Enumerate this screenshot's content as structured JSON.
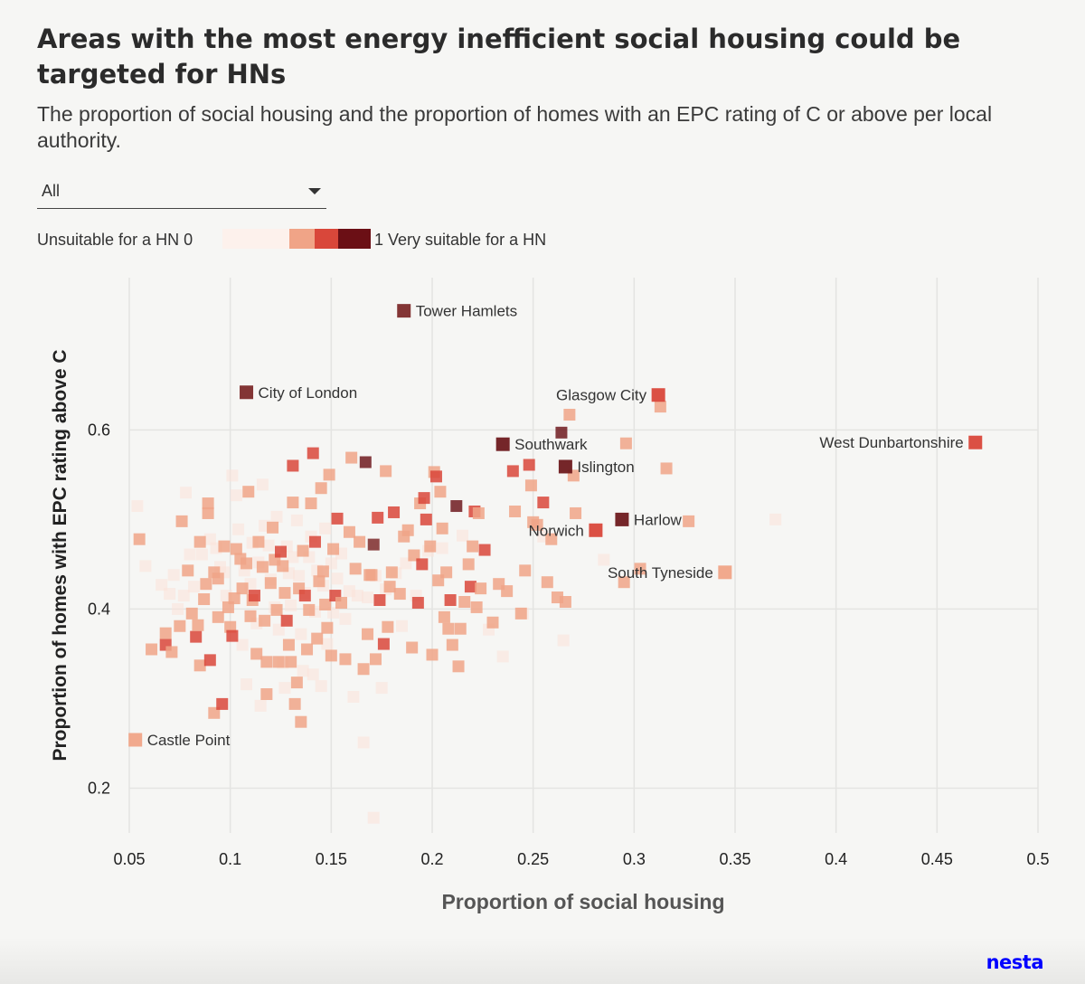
{
  "header": {
    "title": "Areas with the most energy inefficient social housing could be targeted for HNs",
    "subtitle": "The proportion of social housing and the proportion of homes with an EPC rating of C or above per local authority."
  },
  "filter": {
    "selected": "All"
  },
  "legend": {
    "left_label": "Unsuitable for a HN 0",
    "right_label": "1 Very suitable for a HN",
    "colors": [
      "#fdf1ec",
      "#f0a487",
      "#d9473a",
      "#6b0f15"
    ]
  },
  "brand": {
    "name": "nesta"
  },
  "chart_data": {
    "type": "scatter",
    "title": "Areas with the most energy inefficient social housing could be targeted for HNs",
    "xlabel": "Proportion of social housing",
    "ylabel": "Proportion of homes with EPC rating above C",
    "xlim": [
      0.05,
      0.5
    ],
    "ylim": [
      0.15,
      0.77
    ],
    "xticks": [
      {
        "value": 0.05,
        "label": "0.05"
      },
      {
        "value": 0.1,
        "label": "0.1"
      },
      {
        "value": 0.15,
        "label": "0.15"
      },
      {
        "value": 0.2,
        "label": "0.2"
      },
      {
        "value": 0.25,
        "label": "0.25"
      },
      {
        "value": 0.3,
        "label": "0.3"
      },
      {
        "value": 0.35,
        "label": "0.35"
      },
      {
        "value": 0.4,
        "label": "0.4"
      },
      {
        "value": 0.45,
        "label": "0.45"
      },
      {
        "value": 0.5,
        "label": "0.5"
      }
    ],
    "yticks": [
      {
        "value": 0.2,
        "label": "0.2"
      },
      {
        "value": 0.4,
        "label": "0.4"
      },
      {
        "value": 0.6,
        "label": "0.6"
      }
    ],
    "grid": true,
    "color_scale": "suitability 0 (light) to 1 (dark red)",
    "labeled_points": [
      {
        "name": "Tower Hamlets",
        "x": 0.186,
        "y": 0.733,
        "s": 0.78,
        "label_side": "right"
      },
      {
        "name": "City of London",
        "x": 0.108,
        "y": 0.642,
        "s": 0.78,
        "label_side": "right"
      },
      {
        "name": "Glasgow City",
        "x": 0.312,
        "y": 0.639,
        "s": 0.55,
        "label_side": "left"
      },
      {
        "name": "Southwark",
        "x": 0.235,
        "y": 0.584,
        "s": 0.85,
        "label_side": "right"
      },
      {
        "name": "West Dunbartonshire",
        "x": 0.469,
        "y": 0.586,
        "s": 0.55,
        "label_side": "left"
      },
      {
        "name": "Islington",
        "x": 0.266,
        "y": 0.559,
        "s": 0.85,
        "label_side": "right"
      },
      {
        "name": "Harlow",
        "x": 0.294,
        "y": 0.5,
        "s": 0.85,
        "label_side": "right"
      },
      {
        "name": "Norwich",
        "x": 0.281,
        "y": 0.488,
        "s": 0.55,
        "label_side": "left"
      },
      {
        "name": "South Tyneside",
        "x": 0.345,
        "y": 0.441,
        "s": 0.3,
        "label_side": "left"
      },
      {
        "name": "Castle Point",
        "x": 0.053,
        "y": 0.254,
        "s": 0.3,
        "label_side": "right"
      }
    ],
    "points": [
      [
        0.055,
        0.478,
        0.3
      ],
      [
        0.061,
        0.355,
        0.3
      ],
      [
        0.068,
        0.373,
        0.3
      ],
      [
        0.068,
        0.36,
        0.55
      ],
      [
        0.071,
        0.352,
        0.3
      ],
      [
        0.075,
        0.381,
        0.3
      ],
      [
        0.076,
        0.498,
        0.3
      ],
      [
        0.079,
        0.443,
        0.3
      ],
      [
        0.081,
        0.395,
        0.3
      ],
      [
        0.083,
        0.369,
        0.55
      ],
      [
        0.084,
        0.382,
        0.3
      ],
      [
        0.085,
        0.337,
        0.3
      ],
      [
        0.085,
        0.475,
        0.3
      ],
      [
        0.087,
        0.411,
        0.3
      ],
      [
        0.088,
        0.428,
        0.3
      ],
      [
        0.089,
        0.518,
        0.3
      ],
      [
        0.089,
        0.507,
        0.3
      ],
      [
        0.09,
        0.343,
        0.55
      ],
      [
        0.092,
        0.441,
        0.3
      ],
      [
        0.092,
        0.284,
        0.3
      ],
      [
        0.094,
        0.434,
        0.3
      ],
      [
        0.094,
        0.391,
        0.3
      ],
      [
        0.096,
        0.294,
        0.55
      ],
      [
        0.097,
        0.47,
        0.3
      ],
      [
        0.099,
        0.402,
        0.3
      ],
      [
        0.1,
        0.38,
        0.3
      ],
      [
        0.101,
        0.37,
        0.55
      ],
      [
        0.102,
        0.412,
        0.3
      ],
      [
        0.103,
        0.467,
        0.3
      ],
      [
        0.105,
        0.456,
        0.3
      ],
      [
        0.106,
        0.423,
        0.3
      ],
      [
        0.108,
        0.451,
        0.3
      ],
      [
        0.109,
        0.531,
        0.3
      ],
      [
        0.11,
        0.392,
        0.3
      ],
      [
        0.111,
        0.41,
        0.3
      ],
      [
        0.112,
        0.415,
        0.55
      ],
      [
        0.113,
        0.35,
        0.3
      ],
      [
        0.114,
        0.475,
        0.3
      ],
      [
        0.116,
        0.447,
        0.3
      ],
      [
        0.117,
        0.387,
        0.3
      ],
      [
        0.118,
        0.341,
        0.3
      ],
      [
        0.118,
        0.305,
        0.3
      ],
      [
        0.12,
        0.429,
        0.3
      ],
      [
        0.121,
        0.491,
        0.3
      ],
      [
        0.122,
        0.455,
        0.3
      ],
      [
        0.123,
        0.399,
        0.3
      ],
      [
        0.124,
        0.341,
        0.3
      ],
      [
        0.125,
        0.464,
        0.55
      ],
      [
        0.126,
        0.448,
        0.3
      ],
      [
        0.127,
        0.418,
        0.3
      ],
      [
        0.128,
        0.387,
        0.55
      ],
      [
        0.129,
        0.36,
        0.3
      ],
      [
        0.13,
        0.341,
        0.3
      ],
      [
        0.131,
        0.519,
        0.3
      ],
      [
        0.131,
        0.56,
        0.55
      ],
      [
        0.132,
        0.294,
        0.3
      ],
      [
        0.133,
        0.318,
        0.3
      ],
      [
        0.134,
        0.423,
        0.3
      ],
      [
        0.135,
        0.274,
        0.3
      ],
      [
        0.136,
        0.465,
        0.3
      ],
      [
        0.137,
        0.415,
        0.55
      ],
      [
        0.138,
        0.355,
        0.3
      ],
      [
        0.139,
        0.399,
        0.3
      ],
      [
        0.14,
        0.518,
        0.3
      ],
      [
        0.141,
        0.574,
        0.55
      ],
      [
        0.142,
        0.475,
        0.55
      ],
      [
        0.143,
        0.367,
        0.3
      ],
      [
        0.144,
        0.431,
        0.3
      ],
      [
        0.145,
        0.535,
        0.3
      ],
      [
        0.146,
        0.442,
        0.3
      ],
      [
        0.147,
        0.405,
        0.3
      ],
      [
        0.148,
        0.379,
        0.3
      ],
      [
        0.149,
        0.55,
        0.3
      ],
      [
        0.15,
        0.348,
        0.3
      ],
      [
        0.151,
        0.467,
        0.3
      ],
      [
        0.152,
        0.415,
        0.55
      ],
      [
        0.153,
        0.501,
        0.55
      ],
      [
        0.155,
        0.407,
        0.3
      ],
      [
        0.157,
        0.344,
        0.3
      ],
      [
        0.159,
        0.486,
        0.3
      ],
      [
        0.16,
        0.569,
        0.3
      ],
      [
        0.162,
        0.445,
        0.3
      ],
      [
        0.164,
        0.475,
        0.3
      ],
      [
        0.166,
        0.333,
        0.3
      ],
      [
        0.167,
        0.564,
        0.85
      ],
      [
        0.168,
        0.372,
        0.3
      ],
      [
        0.169,
        0.438,
        0.3
      ],
      [
        0.17,
        0.438,
        0.3
      ],
      [
        0.171,
        0.472,
        0.78
      ],
      [
        0.172,
        0.344,
        0.3
      ],
      [
        0.173,
        0.502,
        0.55
      ],
      [
        0.174,
        0.41,
        0.55
      ],
      [
        0.176,
        0.361,
        0.55
      ],
      [
        0.177,
        0.554,
        0.3
      ],
      [
        0.178,
        0.38,
        0.3
      ],
      [
        0.179,
        0.425,
        0.3
      ],
      [
        0.18,
        0.441,
        0.3
      ],
      [
        0.181,
        0.508,
        0.55
      ],
      [
        0.184,
        0.417,
        0.3
      ],
      [
        0.186,
        0.481,
        0.3
      ],
      [
        0.188,
        0.488,
        0.3
      ],
      [
        0.19,
        0.357,
        0.3
      ],
      [
        0.191,
        0.46,
        0.3
      ],
      [
        0.193,
        0.407,
        0.55
      ],
      [
        0.194,
        0.518,
        0.3
      ],
      [
        0.195,
        0.45,
        0.55
      ],
      [
        0.196,
        0.524,
        0.55
      ],
      [
        0.197,
        0.5,
        0.55
      ],
      [
        0.199,
        0.47,
        0.3
      ],
      [
        0.2,
        0.349,
        0.3
      ],
      [
        0.201,
        0.553,
        0.3
      ],
      [
        0.202,
        0.548,
        0.55
      ],
      [
        0.203,
        0.432,
        0.3
      ],
      [
        0.204,
        0.531,
        0.3
      ],
      [
        0.205,
        0.49,
        0.3
      ],
      [
        0.206,
        0.391,
        0.3
      ],
      [
        0.207,
        0.441,
        0.3
      ],
      [
        0.208,
        0.378,
        0.3
      ],
      [
        0.209,
        0.41,
        0.55
      ],
      [
        0.21,
        0.36,
        0.3
      ],
      [
        0.212,
        0.515,
        0.85
      ],
      [
        0.213,
        0.336,
        0.3
      ],
      [
        0.214,
        0.378,
        0.3
      ],
      [
        0.216,
        0.408,
        0.3
      ],
      [
        0.218,
        0.45,
        0.3
      ],
      [
        0.219,
        0.425,
        0.55
      ],
      [
        0.22,
        0.47,
        0.3
      ],
      [
        0.221,
        0.509,
        0.55
      ],
      [
        0.222,
        0.402,
        0.3
      ],
      [
        0.223,
        0.507,
        0.3
      ],
      [
        0.224,
        0.423,
        0.3
      ],
      [
        0.226,
        0.466,
        0.55
      ],
      [
        0.23,
        0.385,
        0.3
      ],
      [
        0.233,
        0.428,
        0.3
      ],
      [
        0.237,
        0.42,
        0.3
      ],
      [
        0.24,
        0.554,
        0.55
      ],
      [
        0.241,
        0.509,
        0.3
      ],
      [
        0.244,
        0.395,
        0.3
      ],
      [
        0.246,
        0.443,
        0.3
      ],
      [
        0.248,
        0.561,
        0.55
      ],
      [
        0.249,
        0.538,
        0.3
      ],
      [
        0.25,
        0.497,
        0.3
      ],
      [
        0.252,
        0.494,
        0.3
      ],
      [
        0.255,
        0.519,
        0.55
      ],
      [
        0.257,
        0.43,
        0.3
      ],
      [
        0.259,
        0.478,
        0.3
      ],
      [
        0.262,
        0.413,
        0.3
      ],
      [
        0.264,
        0.597,
        0.85
      ],
      [
        0.266,
        0.408,
        0.3
      ],
      [
        0.268,
        0.617,
        0.3
      ],
      [
        0.27,
        0.549,
        0.3
      ],
      [
        0.271,
        0.507,
        0.3
      ],
      [
        0.295,
        0.43,
        0.3
      ],
      [
        0.296,
        0.585,
        0.3
      ],
      [
        0.303,
        0.445,
        0.3
      ],
      [
        0.313,
        0.626,
        0.3
      ],
      [
        0.316,
        0.557,
        0.3
      ],
      [
        0.327,
        0.498,
        0.3
      ]
    ],
    "faint_points": [
      [
        0.054,
        0.515
      ],
      [
        0.058,
        0.448
      ],
      [
        0.066,
        0.427
      ],
      [
        0.07,
        0.417
      ],
      [
        0.072,
        0.438
      ],
      [
        0.074,
        0.4
      ],
      [
        0.077,
        0.415
      ],
      [
        0.078,
        0.53
      ],
      [
        0.08,
        0.461
      ],
      [
        0.082,
        0.425
      ],
      [
        0.086,
        0.461
      ],
      [
        0.09,
        0.478
      ],
      [
        0.093,
        0.468
      ],
      [
        0.095,
        0.447
      ],
      [
        0.097,
        0.441
      ],
      [
        0.098,
        0.415
      ],
      [
        0.101,
        0.549
      ],
      [
        0.103,
        0.527
      ],
      [
        0.104,
        0.489
      ],
      [
        0.106,
        0.36
      ],
      [
        0.107,
        0.443
      ],
      [
        0.108,
        0.316
      ],
      [
        0.11,
        0.428
      ],
      [
        0.111,
        0.474
      ],
      [
        0.113,
        0.384
      ],
      [
        0.114,
        0.452
      ],
      [
        0.115,
        0.292
      ],
      [
        0.116,
        0.539
      ],
      [
        0.117,
        0.493
      ],
      [
        0.119,
        0.471
      ],
      [
        0.12,
        0.433
      ],
      [
        0.122,
        0.402
      ],
      [
        0.123,
        0.503
      ],
      [
        0.124,
        0.377
      ],
      [
        0.126,
        0.34
      ],
      [
        0.127,
        0.312
      ],
      [
        0.128,
        0.47
      ],
      [
        0.129,
        0.44
      ],
      [
        0.13,
        0.404
      ],
      [
        0.131,
        0.458
      ],
      [
        0.133,
        0.499
      ],
      [
        0.134,
        0.437
      ],
      [
        0.135,
        0.372
      ],
      [
        0.136,
        0.331
      ],
      [
        0.137,
        0.418
      ],
      [
        0.139,
        0.458
      ],
      [
        0.14,
        0.481
      ],
      [
        0.141,
        0.327
      ],
      [
        0.142,
        0.397
      ],
      [
        0.143,
        0.443
      ],
      [
        0.145,
        0.314
      ],
      [
        0.146,
        0.426
      ],
      [
        0.147,
        0.49
      ],
      [
        0.148,
        0.361
      ],
      [
        0.15,
        0.451
      ],
      [
        0.151,
        0.396
      ],
      [
        0.153,
        0.434
      ],
      [
        0.155,
        0.462
      ],
      [
        0.157,
        0.389
      ],
      [
        0.159,
        0.42
      ],
      [
        0.161,
        0.302
      ],
      [
        0.163,
        0.415
      ],
      [
        0.166,
        0.251
      ],
      [
        0.168,
        0.413
      ],
      [
        0.171,
        0.167
      ],
      [
        0.172,
        0.437
      ],
      [
        0.175,
        0.312
      ],
      [
        0.177,
        0.422
      ],
      [
        0.182,
        0.44
      ],
      [
        0.185,
        0.381
      ],
      [
        0.187,
        0.451
      ],
      [
        0.192,
        0.415
      ],
      [
        0.198,
        0.465
      ],
      [
        0.205,
        0.468
      ],
      [
        0.215,
        0.482
      ],
      [
        0.228,
        0.377
      ],
      [
        0.235,
        0.347
      ],
      [
        0.245,
        0.395
      ],
      [
        0.255,
        0.481
      ],
      [
        0.265,
        0.365
      ],
      [
        0.285,
        0.455
      ],
      [
        0.37,
        0.5
      ]
    ]
  }
}
